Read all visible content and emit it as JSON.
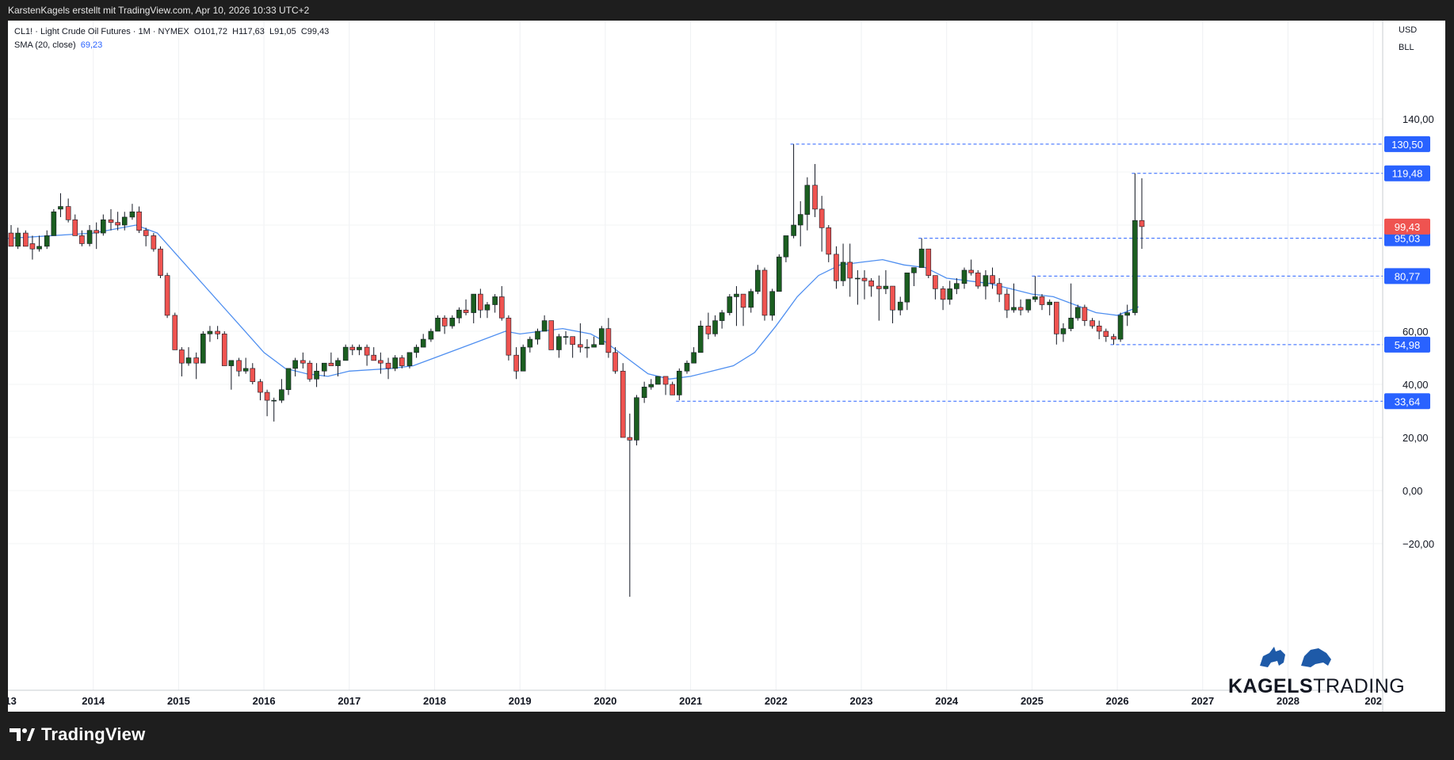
{
  "header": {
    "attribution": "KarstenKagels erstellt mit TradingView.com, Apr 10, 2026 10:33 UTC+2"
  },
  "legend": {
    "symbol": "CL1! · Light Crude Oil Futures · 1M · NYMEX",
    "o": "O101,72",
    "h": "H117,63",
    "l": "L91,05",
    "c": "C99,43",
    "sma_label": "SMA (20, close)",
    "sma_value": "69,23"
  },
  "price_scale": {
    "currency": "USD",
    "unit": "BLL"
  },
  "branding": {
    "watermark_bold": "KAGELS",
    "watermark_light": "TRADING",
    "footer_logo_text": "TradingView"
  },
  "colors": {
    "up": "#26a69a",
    "up_body": "#1b5e20",
    "down": "#ef5350",
    "sma": "#4f8ff0",
    "level_line": "#2962ff",
    "last_price": "#ef5350",
    "level_label_bg": "#2962ff"
  },
  "chart_data": {
    "type": "candlestick",
    "title": "CL1! · Light Crude Oil Futures · 1M · NYMEX",
    "x_ticks": [
      "013",
      "2014",
      "2015",
      "2016",
      "2017",
      "2018",
      "2019",
      "2020",
      "2021",
      "2022",
      "2023",
      "2024",
      "2025",
      "2026",
      "2027",
      "2028",
      "202"
    ],
    "x_range": [
      2013.0,
      2029.0
    ],
    "y_ticks": [
      140,
      120,
      100,
      80,
      60,
      40,
      20,
      0,
      -20
    ],
    "y_tick_labels": [
      "140,00",
      "",
      "",
      "",
      "60,00",
      "40,00",
      "20,00",
      "0,00",
      "−20,00"
    ],
    "y_range": [
      -40,
      170
    ],
    "grid": true,
    "horizontal_levels": [
      {
        "value": 130.5,
        "label": "130,50",
        "from_year": 2022.17
      },
      {
        "value": 119.48,
        "label": "119,48",
        "from_year": 2026.17
      },
      {
        "value": 95.03,
        "label": "95,03",
        "from_year": 2023.67
      },
      {
        "value": 80.77,
        "label": "80,77",
        "from_year": 2025.0
      },
      {
        "value": 54.98,
        "label": "54,98",
        "from_year": 2025.92
      },
      {
        "value": 33.64,
        "label": "33,64",
        "from_year": 2020.83
      }
    ],
    "last_price": {
      "value": 99.43,
      "label": "99,43"
    },
    "candles": [
      [
        2013.0,
        97,
        100,
        92,
        92
      ],
      [
        2013.08,
        92,
        99,
        91,
        97
      ],
      [
        2013.17,
        97,
        98,
        92,
        92
      ],
      [
        2013.25,
        93,
        96,
        87,
        91
      ],
      [
        2013.33,
        91,
        96,
        90,
        92
      ],
      [
        2013.42,
        92,
        98,
        91,
        96
      ],
      [
        2013.5,
        96,
        106,
        96,
        105
      ],
      [
        2013.58,
        106,
        112,
        103,
        107
      ],
      [
        2013.67,
        107,
        110,
        101,
        102
      ],
      [
        2013.75,
        102,
        104,
        96,
        96
      ],
      [
        2013.83,
        96,
        98,
        92,
        93
      ],
      [
        2013.92,
        93,
        100,
        92,
        98
      ],
      [
        2014.0,
        98,
        101,
        91,
        97
      ],
      [
        2014.08,
        97,
        104,
        96,
        102
      ],
      [
        2014.17,
        102,
        106,
        98,
        101
      ],
      [
        2014.25,
        101,
        105,
        98,
        100
      ],
      [
        2014.33,
        100,
        105,
        98,
        103
      ],
      [
        2014.42,
        103,
        108,
        102,
        105
      ],
      [
        2014.5,
        105,
        107,
        97,
        98
      ],
      [
        2014.58,
        98,
        99,
        92,
        96
      ],
      [
        2014.67,
        96,
        97,
        90,
        91
      ],
      [
        2014.75,
        91,
        92,
        80,
        81
      ],
      [
        2014.83,
        81,
        82,
        65,
        66
      ],
      [
        2014.92,
        66,
        67,
        53,
        53
      ],
      [
        2015.0,
        53,
        54,
        43,
        48
      ],
      [
        2015.08,
        48,
        54,
        47,
        50
      ],
      [
        2015.17,
        50,
        52,
        42,
        48
      ],
      [
        2015.25,
        48,
        60,
        48,
        59
      ],
      [
        2015.33,
        59,
        62,
        56,
        60
      ],
      [
        2015.42,
        60,
        62,
        57,
        59
      ],
      [
        2015.5,
        59,
        60,
        47,
        47
      ],
      [
        2015.58,
        47,
        49,
        38,
        49
      ],
      [
        2015.67,
        49,
        50,
        43,
        45
      ],
      [
        2015.75,
        45,
        50,
        44,
        46
      ],
      [
        2015.83,
        46,
        48,
        40,
        41
      ],
      [
        2015.92,
        41,
        42,
        34,
        37
      ],
      [
        2016.0,
        37,
        38,
        28,
        34
      ],
      [
        2016.08,
        34,
        35,
        26,
        34
      ],
      [
        2016.17,
        34,
        42,
        33,
        38
      ],
      [
        2016.25,
        38,
        46,
        36,
        46
      ],
      [
        2016.33,
        46,
        50,
        43,
        49
      ],
      [
        2016.42,
        49,
        52,
        46,
        48
      ],
      [
        2016.5,
        48,
        49,
        41,
        42
      ],
      [
        2016.58,
        42,
        48,
        39,
        45
      ],
      [
        2016.67,
        45,
        48,
        43,
        48
      ],
      [
        2016.75,
        48,
        52,
        47,
        47
      ],
      [
        2016.83,
        47,
        50,
        43,
        49
      ],
      [
        2016.92,
        49,
        55,
        49,
        54
      ],
      [
        2017.0,
        54,
        55,
        51,
        53
      ],
      [
        2017.08,
        53,
        55,
        51,
        54
      ],
      [
        2017.17,
        54,
        55,
        47,
        51
      ],
      [
        2017.25,
        51,
        54,
        49,
        49
      ],
      [
        2017.33,
        49,
        52,
        44,
        48
      ],
      [
        2017.42,
        48,
        50,
        42,
        46
      ],
      [
        2017.5,
        46,
        51,
        45,
        50
      ],
      [
        2017.58,
        50,
        51,
        46,
        47
      ],
      [
        2017.67,
        47,
        52,
        46,
        52
      ],
      [
        2017.75,
        52,
        55,
        50,
        54
      ],
      [
        2017.83,
        54,
        59,
        54,
        57
      ],
      [
        2017.92,
        57,
        61,
        56,
        60
      ],
      [
        2018.0,
        60,
        66,
        60,
        65
      ],
      [
        2018.08,
        65,
        66,
        59,
        62
      ],
      [
        2018.17,
        62,
        66,
        61,
        65
      ],
      [
        2018.25,
        65,
        69,
        63,
        68
      ],
      [
        2018.33,
        68,
        72,
        66,
        67
      ],
      [
        2018.42,
        67,
        74,
        63,
        74
      ],
      [
        2018.5,
        74,
        76,
        65,
        68
      ],
      [
        2018.58,
        68,
        71,
        65,
        70
      ],
      [
        2018.67,
        70,
        74,
        67,
        73
      ],
      [
        2018.75,
        73,
        77,
        64,
        65
      ],
      [
        2018.83,
        65,
        66,
        49,
        51
      ],
      [
        2018.92,
        51,
        54,
        42,
        45
      ],
      [
        2019.0,
        45,
        55,
        45,
        54
      ],
      [
        2019.08,
        54,
        58,
        52,
        57
      ],
      [
        2019.17,
        57,
        61,
        55,
        60
      ],
      [
        2019.25,
        60,
        66,
        60,
        64
      ],
      [
        2019.33,
        64,
        64,
        53,
        53
      ],
      [
        2019.42,
        53,
        59,
        50,
        58
      ],
      [
        2019.5,
        58,
        60,
        55,
        58
      ],
      [
        2019.58,
        58,
        58,
        50,
        55
      ],
      [
        2019.67,
        55,
        63,
        52,
        54
      ],
      [
        2019.75,
        54,
        57,
        50,
        54
      ],
      [
        2019.83,
        54,
        58,
        54,
        55
      ],
      [
        2019.92,
        55,
        62,
        55,
        61
      ],
      [
        2020.0,
        61,
        65,
        50,
        52
      ],
      [
        2020.08,
        52,
        54,
        44,
        45
      ],
      [
        2020.17,
        45,
        48,
        20,
        20
      ],
      [
        2020.25,
        20,
        29,
        -40,
        19
      ],
      [
        2020.33,
        19,
        36,
        17,
        35
      ],
      [
        2020.42,
        35,
        41,
        33,
        39
      ],
      [
        2020.5,
        39,
        42,
        38,
        40
      ],
      [
        2020.58,
        40,
        43,
        40,
        43
      ],
      [
        2020.67,
        43,
        43,
        36,
        40
      ],
      [
        2020.75,
        40,
        41,
        36,
        36
      ],
      [
        2020.83,
        36,
        46,
        34,
        45
      ],
      [
        2020.92,
        45,
        49,
        44,
        48
      ],
      [
        2021.0,
        48,
        54,
        48,
        52
      ],
      [
        2021.08,
        52,
        64,
        52,
        62
      ],
      [
        2021.17,
        62,
        67,
        57,
        59
      ],
      [
        2021.25,
        59,
        66,
        58,
        64
      ],
      [
        2021.33,
        64,
        68,
        61,
        67
      ],
      [
        2021.42,
        67,
        74,
        66,
        73
      ],
      [
        2021.5,
        73,
        77,
        62,
        74
      ],
      [
        2021.58,
        74,
        74,
        62,
        69
      ],
      [
        2021.67,
        69,
        76,
        67,
        75
      ],
      [
        2021.75,
        75,
        85,
        74,
        83
      ],
      [
        2021.83,
        83,
        84,
        64,
        66
      ],
      [
        2021.92,
        66,
        76,
        64,
        75
      ],
      [
        2022.0,
        75,
        89,
        75,
        88
      ],
      [
        2022.08,
        88,
        96,
        86,
        96
      ],
      [
        2022.17,
        96,
        130.5,
        95,
        100
      ],
      [
        2022.25,
        100,
        109,
        92,
        104
      ],
      [
        2022.33,
        104,
        118,
        98,
        115
      ],
      [
        2022.42,
        115,
        123,
        103,
        106
      ],
      [
        2022.5,
        106,
        111,
        90,
        99
      ],
      [
        2022.58,
        99,
        100,
        86,
        89
      ],
      [
        2022.67,
        89,
        92,
        76,
        79
      ],
      [
        2022.75,
        79,
        93,
        77,
        86
      ],
      [
        2022.83,
        86,
        93,
        73,
        80
      ],
      [
        2022.92,
        80,
        83,
        70,
        80
      ],
      [
        2023.0,
        80,
        83,
        72,
        79
      ],
      [
        2023.08,
        79,
        80,
        73,
        77
      ],
      [
        2023.17,
        77,
        81,
        64,
        76
      ],
      [
        2023.25,
        76,
        83,
        74,
        77
      ],
      [
        2023.33,
        77,
        77,
        63,
        68
      ],
      [
        2023.42,
        68,
        73,
        66,
        71
      ],
      [
        2023.5,
        71,
        82,
        68,
        82
      ],
      [
        2023.58,
        82,
        84,
        77,
        84
      ],
      [
        2023.67,
        84,
        95,
        84,
        91
      ],
      [
        2023.75,
        91,
        90,
        80,
        81
      ],
      [
        2023.83,
        81,
        81,
        72,
        76
      ],
      [
        2023.92,
        76,
        77,
        68,
        72
      ],
      [
        2024.0,
        72,
        79,
        70,
        76
      ],
      [
        2024.08,
        76,
        80,
        74,
        78
      ],
      [
        2024.17,
        78,
        84,
        76,
        83
      ],
      [
        2024.25,
        83,
        87,
        81,
        82
      ],
      [
        2024.33,
        82,
        83,
        76,
        77
      ],
      [
        2024.42,
        77,
        83,
        72,
        81
      ],
      [
        2024.5,
        81,
        84,
        76,
        78
      ],
      [
        2024.58,
        78,
        80,
        71,
        74
      ],
      [
        2024.67,
        74,
        76,
        65,
        68
      ],
      [
        2024.75,
        68,
        78,
        67,
        69
      ],
      [
        2024.83,
        69,
        72,
        66,
        68
      ],
      [
        2024.92,
        68,
        72,
        67,
        72
      ],
      [
        2025.0,
        72,
        80.77,
        71,
        73
      ],
      [
        2025.08,
        73,
        74,
        68,
        70
      ],
      [
        2025.17,
        70,
        72,
        66,
        71
      ],
      [
        2025.25,
        71,
        71,
        55,
        59
      ],
      [
        2025.33,
        59,
        63,
        56,
        61
      ],
      [
        2025.42,
        61,
        78,
        60,
        65
      ],
      [
        2025.5,
        65,
        70,
        64,
        69
      ],
      [
        2025.58,
        69,
        70,
        62,
        64
      ],
      [
        2025.67,
        64,
        65,
        61,
        62
      ],
      [
        2025.75,
        62,
        64,
        57,
        60
      ],
      [
        2025.83,
        60,
        61,
        56,
        58
      ],
      [
        2025.92,
        58,
        59,
        54.98,
        57
      ],
      [
        2026.0,
        57,
        67,
        56,
        66
      ],
      [
        2026.08,
        66,
        70,
        62,
        67
      ],
      [
        2026.17,
        67,
        119.48,
        66,
        101.72
      ],
      [
        2026.25,
        101.72,
        117.63,
        91.05,
        99.43
      ]
    ],
    "sma": {
      "name": "SMA (20, close)",
      "points": [
        [
          2013.0,
          95
        ],
        [
          2014.0,
          97
        ],
        [
          2014.5,
          100
        ],
        [
          2014.75,
          97
        ],
        [
          2015.0,
          88
        ],
        [
          2015.25,
          79
        ],
        [
          2015.5,
          70
        ],
        [
          2015.75,
          61
        ],
        [
          2016.0,
          52
        ],
        [
          2016.25,
          46
        ],
        [
          2016.5,
          44
        ],
        [
          2016.75,
          43
        ],
        [
          2017.0,
          45
        ],
        [
          2017.5,
          46
        ],
        [
          2017.75,
          47
        ],
        [
          2018.0,
          50
        ],
        [
          2018.5,
          56
        ],
        [
          2018.83,
          60
        ],
        [
          2019.0,
          59
        ],
        [
          2019.5,
          61
        ],
        [
          2019.83,
          59
        ],
        [
          2020.0,
          56
        ],
        [
          2020.25,
          50
        ],
        [
          2020.5,
          44
        ],
        [
          2020.75,
          42
        ],
        [
          2021.0,
          43
        ],
        [
          2021.25,
          45
        ],
        [
          2021.5,
          47
        ],
        [
          2021.75,
          52
        ],
        [
          2022.0,
          62
        ],
        [
          2022.25,
          73
        ],
        [
          2022.5,
          81
        ],
        [
          2022.75,
          85
        ],
        [
          2023.0,
          86
        ],
        [
          2023.25,
          87
        ],
        [
          2023.5,
          85
        ],
        [
          2023.75,
          84
        ],
        [
          2024.0,
          80
        ],
        [
          2024.25,
          79
        ],
        [
          2024.5,
          78
        ],
        [
          2024.75,
          76
        ],
        [
          2025.0,
          74
        ],
        [
          2025.25,
          73
        ],
        [
          2025.5,
          70
        ],
        [
          2025.75,
          67
        ],
        [
          2026.0,
          66
        ],
        [
          2026.25,
          69.23
        ]
      ]
    }
  }
}
